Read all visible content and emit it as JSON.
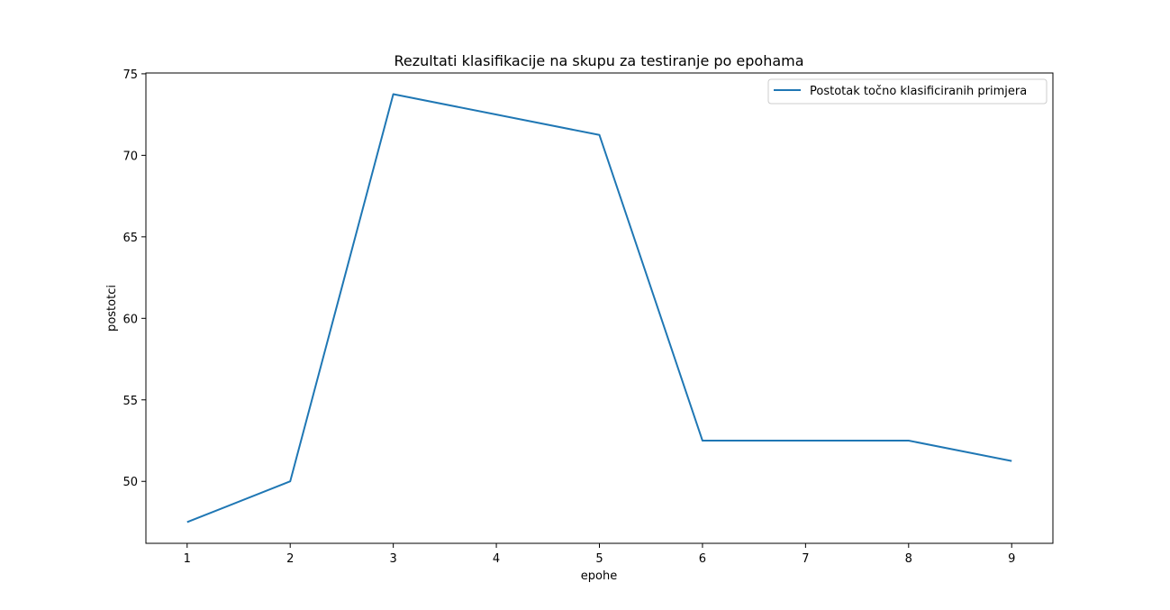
{
  "chart_data": {
    "type": "line",
    "title": "Rezultati klasifikacije na skupu za testiranje po epohama",
    "xlabel": "epohe",
    "ylabel": "postotci",
    "x": [
      1,
      2,
      3,
      4,
      5,
      6,
      7,
      8,
      9
    ],
    "xticks": [
      1,
      2,
      3,
      4,
      5,
      6,
      7,
      8,
      9
    ],
    "yticks": [
      50,
      55,
      60,
      65,
      70,
      75
    ],
    "xlim": [
      0.6,
      9.4
    ],
    "ylim": [
      46.2,
      75.05
    ],
    "grid": false,
    "legend_position": "top-right",
    "series": [
      {
        "name": "Postotak točno klasificiranih primjera",
        "color": "#1f77b4",
        "values": [
          47.5,
          50.0,
          73.75,
          72.5,
          71.25,
          52.5,
          52.5,
          52.5,
          51.25
        ]
      }
    ]
  }
}
